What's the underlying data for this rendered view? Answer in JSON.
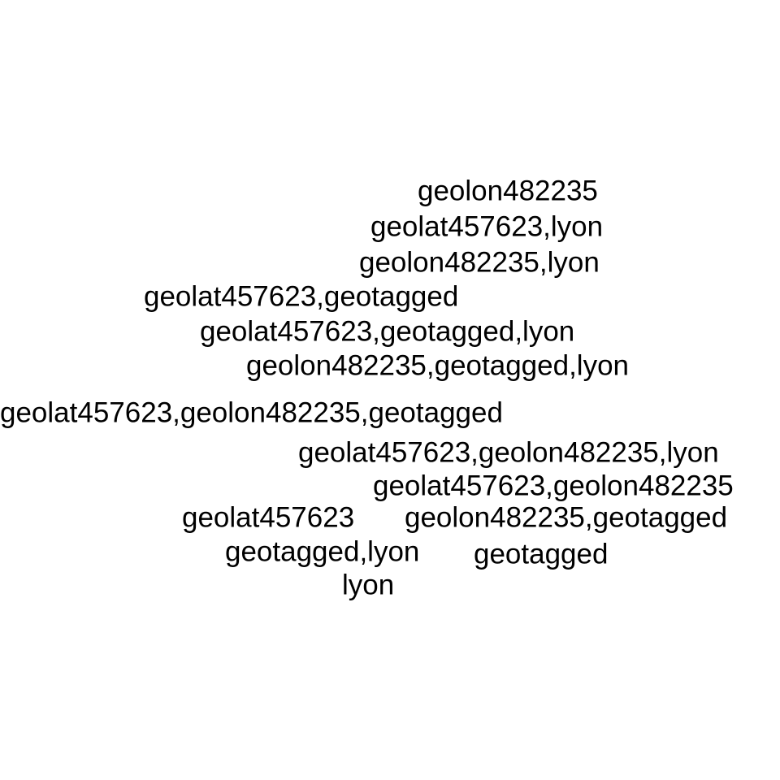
{
  "tags": [
    "geolon482235",
    "geolat457623,lyon",
    "geolon482235,lyon",
    "geolat457623,geotagged",
    "geolat457623,geotagged,lyon",
    "geolon482235,geotagged,lyon",
    "geolat457623,geolon482235,geotagged",
    "geolat457623,geolon482235,lyon",
    "geolat457623,geolon482235",
    "geolat457623",
    "geolon482235,geotagged",
    "geotagged,lyon",
    "geotagged",
    "lyon"
  ],
  "colors": {
    "background": "#ffffff",
    "text": "#000000"
  }
}
